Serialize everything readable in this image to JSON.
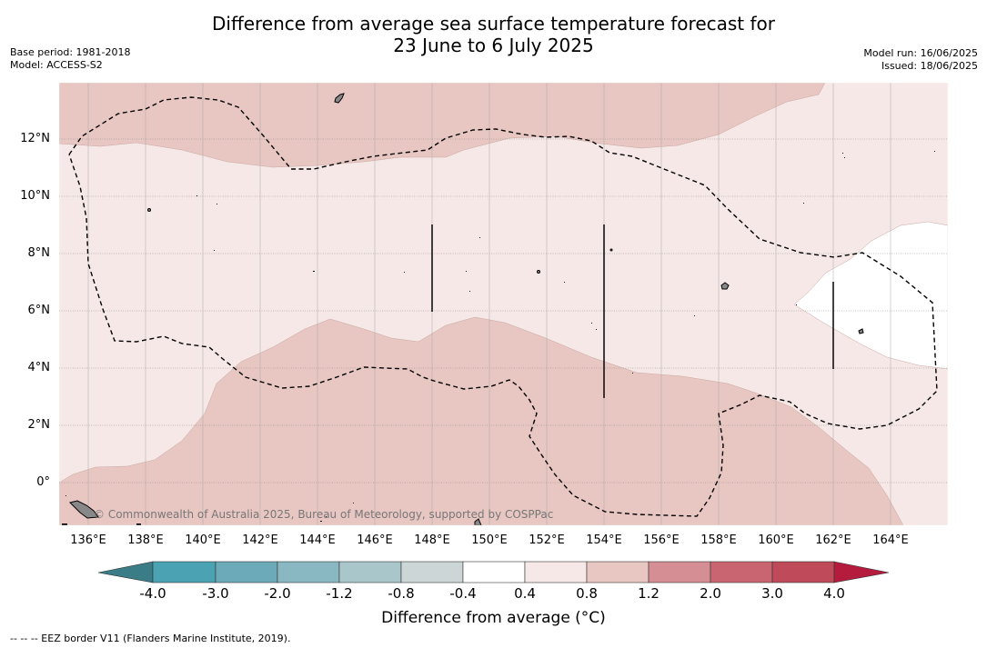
{
  "header": {
    "title_line1": "Difference from average sea surface temperature forecast for",
    "title_line2": "23 June to 6 July 2025",
    "base_period": "Base period: 1981-2018",
    "model": "Model: ACCESS-S2",
    "model_run": "Model run: 16/06/2025",
    "issued": "Issued: 18/06/2025"
  },
  "map": {
    "lat_labels": [
      "12°N",
      "10°N",
      "8°N",
      "6°N",
      "4°N",
      "2°N",
      "0°"
    ],
    "lon_labels": [
      "136°E",
      "138°E",
      "140°E",
      "142°E",
      "144°E",
      "146°E",
      "148°E",
      "150°E",
      "152°E",
      "154°E",
      "156°E",
      "158°E",
      "160°E",
      "162°E",
      "164°E"
    ],
    "watermark": "© Commonwealth of Australia 2025, Bureau of Meteorology, supported by COSPPac",
    "colors": {
      "band_0_4_to_0_8": "#f5e8e6",
      "band_0_8_to_1_2": "#e8c6c1",
      "band_neutral": "#ffffff",
      "eez_line": "#000000"
    }
  },
  "colorbar": {
    "tick_labels": [
      "-4.0",
      "-3.0",
      "-2.0",
      "-1.2",
      "-0.8",
      "-0.4",
      "0.4",
      "0.8",
      "1.2",
      "2.0",
      "3.0",
      "4.0"
    ],
    "colors": [
      "#3a7d86",
      "#4aa2b3",
      "#6caab9",
      "#8ab8c2",
      "#a9c6cb",
      "#ccd6d6",
      "#ffffff",
      "#f5e8e6",
      "#e8c6c1",
      "#d68e95",
      "#c96570",
      "#bf4a5a",
      "#b51b3c"
    ],
    "title": "Difference from average (°C)"
  },
  "footer": {
    "legend": "--  --  -- EEZ border V11 (Flanders Marine Institute, 2019)."
  }
}
